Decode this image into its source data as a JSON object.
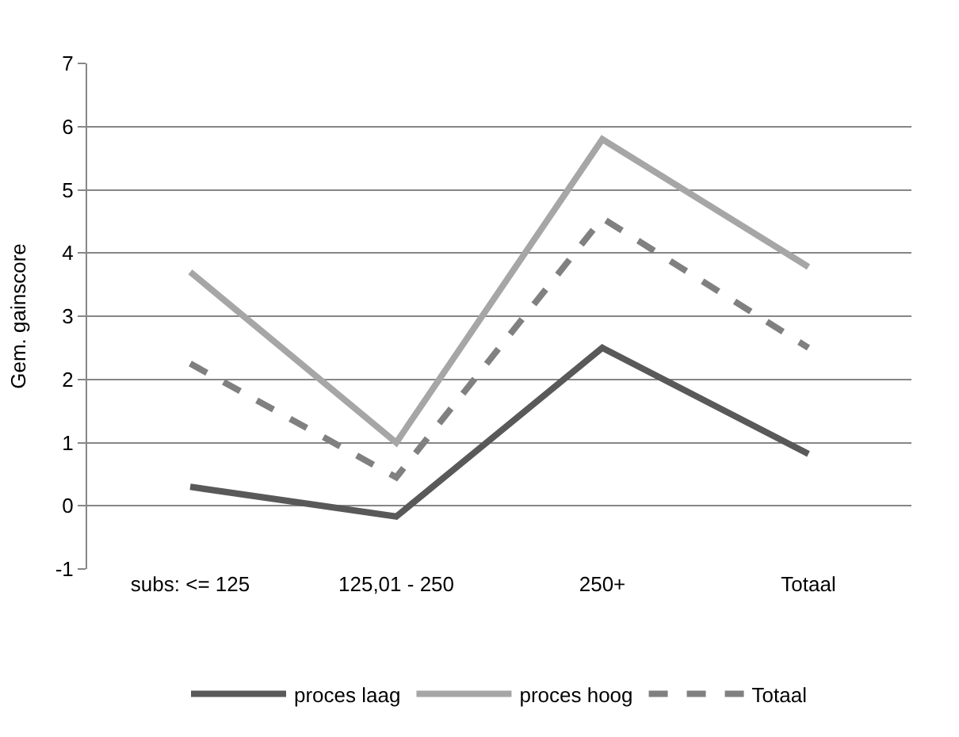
{
  "chart_data": {
    "type": "line",
    "ylabel": "Gem. gainscore",
    "categories": [
      "subs: <= 125",
      "125,01 - 250",
      "250+",
      "Totaal"
    ],
    "series": [
      {
        "name": "proces laag",
        "color": "#595959",
        "values": [
          0.3,
          -0.17,
          2.5,
          0.82
        ]
      },
      {
        "name": "proces hoog",
        "color": "#a6a6a6",
        "values": [
          3.7,
          1.0,
          5.8,
          3.78
        ]
      },
      {
        "name": "Totaal",
        "color": "#808080",
        "line_style": "dashed",
        "values": [
          2.25,
          0.45,
          4.55,
          2.5
        ]
      }
    ],
    "ylim": [
      -1,
      7
    ],
    "yticks": [
      -1,
      0,
      1,
      2,
      3,
      4,
      5,
      6,
      7
    ],
    "grid": "y",
    "legend": "bottom",
    "marker": "none"
  }
}
